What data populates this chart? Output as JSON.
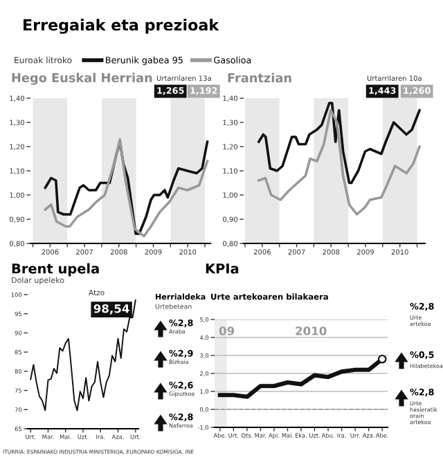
{
  "chart_data": [
    {
      "type": "line",
      "title": "Hego Euskal Herrian",
      "annotations": [
        "Erregaiak eta prezioak",
        "Euroak litroko",
        "Urtarrilaren 13a",
        "1,265",
        "1,192"
      ],
      "series": [
        {
          "name": "Berunik gabea 95",
          "color": "#111111",
          "x": [
            2006.36,
            2006.53,
            2006.67,
            2006.73,
            2006.89,
            2007.09,
            2007.36,
            2007.47,
            2007.63,
            2007.83,
            2007.96,
            2008.23,
            2008.43,
            2008.53,
            2008.63,
            2008.76,
            2008.99,
            2009.09,
            2009.29,
            2009.43,
            2009.52,
            2009.69,
            2009.83,
            2009.92,
            2010.09,
            2010.23,
            2010.49,
            2010.76,
            2010.92,
            2011.07
          ],
          "values": [
            1.03,
            1.07,
            1.06,
            0.93,
            0.92,
            0.92,
            1.03,
            1.04,
            1.02,
            1.02,
            1.05,
            1.05,
            1.17,
            1.22,
            1.13,
            1.07,
            0.84,
            0.84,
            0.91,
            0.98,
            1.0,
            1.0,
            1.02,
            0.99,
            1.06,
            1.11,
            1.1,
            1.09,
            1.11,
            1.22
          ]
        },
        {
          "name": "Gasolioa",
          "color": "#999999",
          "x": [
            2006.36,
            2006.53,
            2006.69,
            2006.96,
            2007.07,
            2007.29,
            2007.63,
            2007.83,
            2008.09,
            2008.36,
            2008.53,
            2008.69,
            2008.96,
            2009.23,
            2009.43,
            2009.69,
            2009.96,
            2010.23,
            2010.49,
            2010.83,
            2011.07
          ],
          "values": [
            0.94,
            0.96,
            0.89,
            0.87,
            0.87,
            0.91,
            0.94,
            0.97,
            1.0,
            1.13,
            1.23,
            1.06,
            0.86,
            0.83,
            0.87,
            0.93,
            0.97,
            1.03,
            1.02,
            1.04,
            1.14
          ]
        }
      ],
      "xlim": [
        2005.93,
        2011.16
      ],
      "xticks": [
        {
          "value": 2006,
          "label": null
        },
        {
          "value": 2006.5,
          "label": "2006"
        },
        {
          "value": 2007,
          "label": null
        },
        {
          "value": 2007.5,
          "label": "2007"
        },
        {
          "value": 2008,
          "label": null
        },
        {
          "value": 2008.5,
          "label": "2008"
        },
        {
          "value": 2009,
          "label": null
        },
        {
          "value": 2009.5,
          "label": "2009"
        },
        {
          "value": 2010,
          "label": null
        },
        {
          "value": 2010.5,
          "label": "2010"
        },
        {
          "value": 2011,
          "label": null
        }
      ],
      "ylim": [
        0.8,
        1.4
      ],
      "yticks": [
        {
          "value": 0.8,
          "label": "0,80"
        },
        {
          "value": 0.9,
          "label": "0,90"
        },
        {
          "value": 1.0,
          "label": "1,00"
        },
        {
          "value": 1.1,
          "label": "1,10"
        },
        {
          "value": 1.2,
          "label": "1,20"
        },
        {
          "value": 1.3,
          "label": "1,30"
        },
        {
          "value": 1.4,
          "label": "1,40"
        }
      ],
      "bands": [
        {
          "axis": "x",
          "from": 2006,
          "to": 2007,
          "color": "#e8e8e8"
        },
        {
          "axis": "x",
          "from": 2008,
          "to": 2009,
          "color": "#e8e8e8"
        },
        {
          "axis": "x",
          "from": 2010,
          "to": 2011,
          "color": "#e8e8e8"
        }
      ],
      "legend": "top",
      "grid": false
    },
    {
      "type": "line",
      "title": "Frantzian",
      "annotations": [
        "Urtarrilaren 10a",
        "1,443",
        "1,260"
      ],
      "series": [
        {
          "color": "#111111",
          "x": [
            2006.4,
            2006.53,
            2006.6,
            2006.73,
            2006.93,
            2007.09,
            2007.36,
            2007.47,
            2007.56,
            2007.76,
            2007.87,
            2008.09,
            2008.23,
            2008.45,
            2008.53,
            2008.63,
            2008.73,
            2008.85,
            2009.03,
            2009.09,
            2009.29,
            2009.49,
            2009.63,
            2009.96,
            2010.09,
            2010.32,
            2010.69,
            2010.85,
            2011.07
          ],
          "values": [
            1.22,
            1.25,
            1.24,
            1.11,
            1.1,
            1.12,
            1.24,
            1.24,
            1.21,
            1.21,
            1.25,
            1.27,
            1.29,
            1.38,
            1.38,
            1.22,
            1.35,
            1.18,
            1.05,
            1.05,
            1.1,
            1.18,
            1.19,
            1.17,
            1.22,
            1.3,
            1.25,
            1.27,
            1.35
          ]
        },
        {
          "color": "#999999",
          "x": [
            2006.4,
            2006.59,
            2006.76,
            2007.03,
            2007.29,
            2007.76,
            2007.89,
            2008.09,
            2008.29,
            2008.49,
            2008.67,
            2008.85,
            2009.03,
            2009.25,
            2009.49,
            2009.63,
            2009.96,
            2010.09,
            2010.36,
            2010.69,
            2010.89,
            2011.07
          ],
          "values": [
            1.06,
            1.07,
            1.0,
            0.98,
            1.02,
            1.08,
            1.15,
            1.14,
            1.21,
            1.35,
            1.3,
            1.08,
            0.96,
            0.92,
            0.95,
            0.98,
            0.99,
            1.03,
            1.12,
            1.09,
            1.13,
            1.2
          ]
        }
      ],
      "xlim": [
        2005.96,
        2011.23
      ],
      "xticks": [
        {
          "value": 2006,
          "label": null
        },
        {
          "value": 2006.5,
          "label": "2006"
        },
        {
          "value": 2007,
          "label": null
        },
        {
          "value": 2007.5,
          "label": "2007"
        },
        {
          "value": 2008,
          "label": null
        },
        {
          "value": 2008.5,
          "label": "2008"
        },
        {
          "value": 2009,
          "label": null
        },
        {
          "value": 2009.5,
          "label": "2009"
        },
        {
          "value": 2010,
          "label": null
        },
        {
          "value": 2010.5,
          "label": "2010"
        },
        {
          "value": 2011,
          "label": null
        }
      ],
      "ylim": [
        0.8,
        1.4
      ],
      "yticks": [
        {
          "value": 0.8,
          "label": "0,80"
        },
        {
          "value": 0.9,
          "label": "0,90"
        },
        {
          "value": 1.0,
          "label": "1,00"
        },
        {
          "value": 1.1,
          "label": "1,10"
        },
        {
          "value": 1.2,
          "label": "1,20"
        },
        {
          "value": 1.3,
          "label": "1,30"
        },
        {
          "value": 1.4,
          "label": "1,40"
        }
      ],
      "bands": [
        {
          "axis": "x",
          "from": 2006,
          "to": 2007,
          "color": "#e8e8e8"
        },
        {
          "axis": "x",
          "from": 2008,
          "to": 2009,
          "color": "#e8e8e8"
        },
        {
          "axis": "x",
          "from": 2010,
          "to": 2011,
          "color": "#e8e8e8"
        }
      ],
      "grid": false
    },
    {
      "type": "line",
      "title": "Brent upela",
      "subtitle": "Dolar upeleko",
      "annotations": [
        "Atzo",
        "ITURRIA: ESPAINIAKO INDUSTRIA MINISTERIOA, EUROPAKO KOMISIOA, INE"
      ],
      "series": [
        {
          "color": "#111111",
          "values": [
            77.9,
            81.7,
            77.1,
            73.5,
            72.3,
            69.8,
            77.7,
            78.0,
            80.7,
            79.5,
            86.1,
            85.3,
            87.3,
            88.5,
            80.7,
            72.3,
            69.8,
            74.7,
            72.9,
            78.3,
            72.3,
            76.1,
            77.1,
            82.5,
            77.1,
            73.2,
            77.1,
            78.9,
            84.1,
            82.5,
            88.5,
            83.4,
            91.0,
            90.3,
            94.0,
            94.0,
            98.54
          ],
          "value_labels": [
            null,
            null,
            null,
            null,
            null,
            null,
            null,
            null,
            null,
            null,
            null,
            null,
            null,
            null,
            null,
            null,
            null,
            null,
            null,
            null,
            null,
            null,
            null,
            null,
            null,
            null,
            null,
            null,
            null,
            null,
            null,
            null,
            null,
            null,
            null,
            null,
            "98,54"
          ]
        }
      ],
      "categories": [
        "Urt.",
        null,
        null,
        null,
        null,
        null,
        "Mar.",
        null,
        null,
        null,
        null,
        null,
        "Mai.",
        null,
        null,
        null,
        null,
        null,
        "Uzt.",
        null,
        null,
        null,
        null,
        null,
        "Ira.",
        null,
        null,
        null,
        null,
        null,
        "Aza.",
        null,
        null,
        null,
        null,
        null,
        "Urt."
      ],
      "ylim": [
        65,
        100
      ],
      "yticks": [
        65,
        70,
        75,
        80,
        85,
        90,
        95,
        100
      ],
      "grid": false
    },
    {
      "type": "line",
      "title": "KPIa",
      "subtitle": "Urte artekoaren bilakaera",
      "annotations": [
        "Herrialdeka",
        "Urtebetean",
        "%2,8",
        "Araba",
        "%2,9",
        "Bizkaia",
        "%2,6",
        "Gipuzkoa",
        "%2,8",
        "Nafarroa",
        "%2,8",
        "Urte artekoa",
        "%0,5",
        "Hilabetekoa",
        "%2,8",
        "Urte hasieratik orain artekoa",
        "09",
        "2010"
      ],
      "categories": [
        "Abe.",
        "Urt.",
        "Ots.",
        "Mar.",
        "Api.",
        "Mai.",
        "Eka.",
        "Uzt.",
        "Abu.",
        "Ira.",
        "Urr.",
        "Aza.",
        "Abe."
      ],
      "series": [
        {
          "color": "#111111",
          "values": [
            0.8,
            0.8,
            0.7,
            1.3,
            1.3,
            1.5,
            1.4,
            1.9,
            1.8,
            2.1,
            2.2,
            2.2,
            2.8
          ]
        },
        {
          "type": "scatter",
          "color": "#ffffff",
          "values": [
            null,
            null,
            null,
            null,
            null,
            null,
            null,
            null,
            null,
            null,
            null,
            null,
            2.8
          ]
        }
      ],
      "ylim": [
        -1.0,
        5.0
      ],
      "yticks": [
        {
          "value": -1,
          "label": "-1,0"
        },
        {
          "value": 0,
          "label": "0,0"
        },
        {
          "value": 1,
          "label": "1,0"
        },
        {
          "value": 2,
          "label": "2,0"
        },
        {
          "value": 3,
          "label": "3,0"
        },
        {
          "value": 4,
          "label": "4,0"
        },
        {
          "value": 5,
          "label": "5,0"
        }
      ],
      "ref_lines": [
        {
          "axis": "y",
          "value": 0,
          "line_style": "dashed",
          "color": "#999999"
        }
      ],
      "grid": "y"
    }
  ]
}
